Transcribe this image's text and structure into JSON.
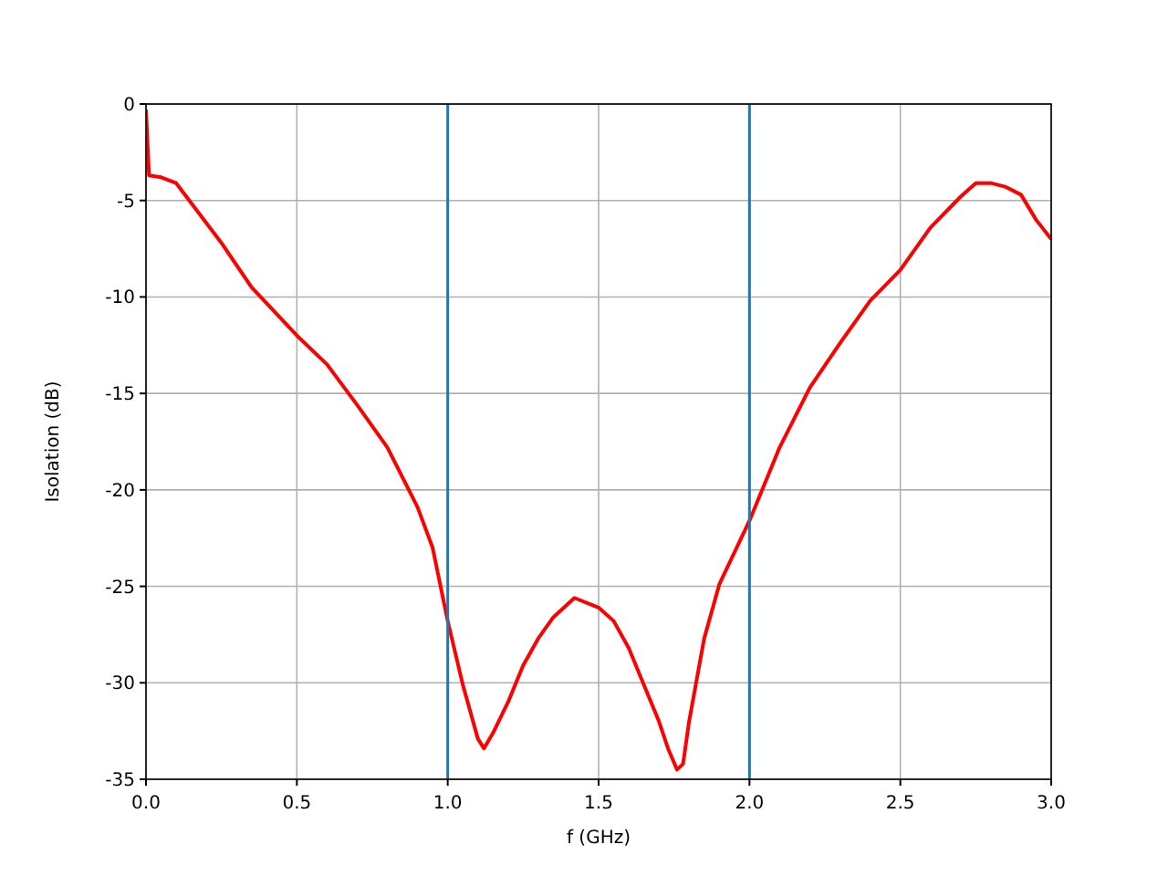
{
  "chart_data": {
    "type": "line",
    "xlabel": "f (GHz)",
    "ylabel": "Isolation (dB)",
    "xlim": [
      0,
      3
    ],
    "xticks": [
      {
        "value": 0,
        "label": "0.0"
      },
      {
        "value": 0.5,
        "label": "0.5"
      },
      {
        "value": 1,
        "label": "1.0"
      },
      {
        "value": 1.5,
        "label": "1.5"
      },
      {
        "value": 2,
        "label": "2.0"
      },
      {
        "value": 2.5,
        "label": "2.5"
      },
      {
        "value": 3,
        "label": "3.0"
      }
    ],
    "ylim": [
      -35,
      0
    ],
    "yticks": [
      -35,
      -30,
      -25,
      -20,
      -15,
      -10,
      -5,
      0
    ],
    "grid": true,
    "ref_lines": [
      {
        "axis": "x",
        "value": 1,
        "color": "#1f77b4"
      },
      {
        "axis": "x",
        "value": 2,
        "color": "#1f77b4"
      }
    ],
    "series": [
      {
        "color": "#ff0000",
        "x": [
          0,
          0.01,
          0.05,
          0.1,
          0.25,
          0.35,
          0.5,
          0.6,
          0.7,
          0.8,
          0.9,
          0.95,
          1.0,
          1.05,
          1.1,
          1.12,
          1.15,
          1.2,
          1.25,
          1.3,
          1.35,
          1.42,
          1.5,
          1.55,
          1.6,
          1.65,
          1.7,
          1.73,
          1.76,
          1.78,
          1.8,
          1.85,
          1.9,
          2.0,
          2.05,
          2.1,
          2.2,
          2.3,
          2.4,
          2.5,
          2.6,
          2.7,
          2.75,
          2.8,
          2.85,
          2.9,
          2.95,
          3.0
        ],
        "values": [
          -0.3,
          -3.7,
          -3.8,
          -4.1,
          -7.2,
          -9.5,
          -12.0,
          -13.5,
          -15.6,
          -17.8,
          -20.9,
          -23.0,
          -26.8,
          -30.1,
          -32.9,
          -33.4,
          -32.6,
          -31.0,
          -29.1,
          -27.7,
          -26.6,
          -25.6,
          -26.1,
          -26.8,
          -28.2,
          -30.1,
          -32.0,
          -33.4,
          -34.5,
          -34.2,
          -32.0,
          -27.7,
          -24.9,
          -21.6,
          -19.7,
          -17.8,
          -14.7,
          -12.4,
          -10.2,
          -8.6,
          -6.4,
          -4.8,
          -4.1,
          -4.1,
          -4.3,
          -4.7,
          -6.0,
          -7.0
        ]
      }
    ]
  }
}
